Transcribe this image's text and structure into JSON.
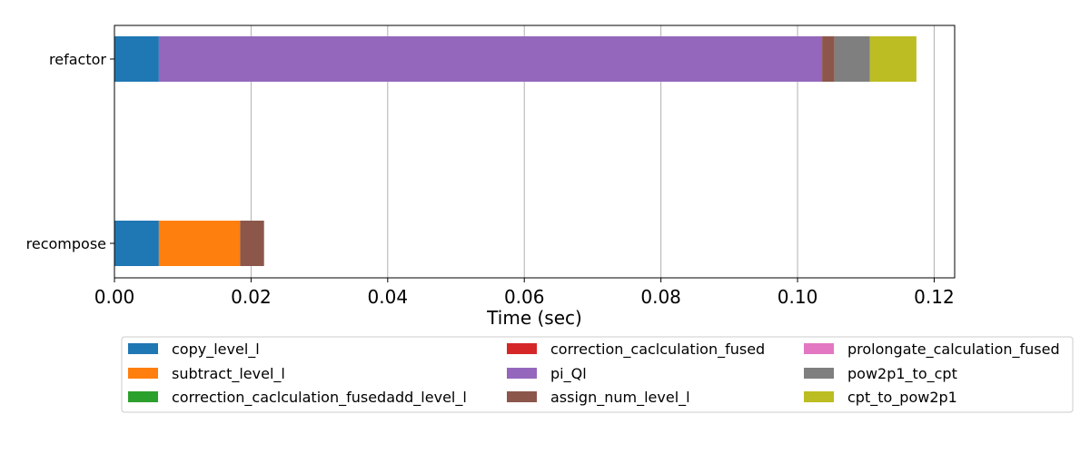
{
  "chart_data": {
    "type": "bar",
    "orientation": "horizontal",
    "stacked": true,
    "xlabel": "Time (sec)",
    "ylabel": "",
    "xlim": [
      0,
      0.123
    ],
    "x_ticks": [
      "0.00",
      "0.02",
      "0.04",
      "0.06",
      "0.08",
      "0.10",
      "0.12"
    ],
    "grid": "x",
    "legend_position": "bottom",
    "categories": [
      "refactor",
      "recompose"
    ],
    "series": [
      {
        "name": "copy_level_l",
        "color": "#1f77b4",
        "values": [
          0.0065,
          0.0065
        ]
      },
      {
        "name": "subtract_level_l",
        "color": "#ff7f0e",
        "values": [
          0,
          0.0119
        ]
      },
      {
        "name": "correction_caclculation_fusedadd_level_l",
        "color": "#2ca02c",
        "values": [
          0,
          0
        ]
      },
      {
        "name": "correction_caclculation_fused",
        "color": "#d62728",
        "values": [
          0,
          0
        ]
      },
      {
        "name": "pi_Ql",
        "color": "#9467bd",
        "values": [
          0.0971,
          0
        ]
      },
      {
        "name": "assign_num_level_l",
        "color": "#8c564b",
        "values": [
          0.0018,
          0.0035
        ]
      },
      {
        "name": "prolongate_calculation_fused",
        "color": "#e377c2",
        "values": [
          0,
          0
        ]
      },
      {
        "name": "pow2p1_to_cpt",
        "color": "#7f7f7f",
        "values": [
          0.0052,
          0
        ]
      },
      {
        "name": "cpt_to_pow2p1",
        "color": "#bcbd22",
        "values": [
          0.0068,
          0
        ]
      }
    ]
  }
}
